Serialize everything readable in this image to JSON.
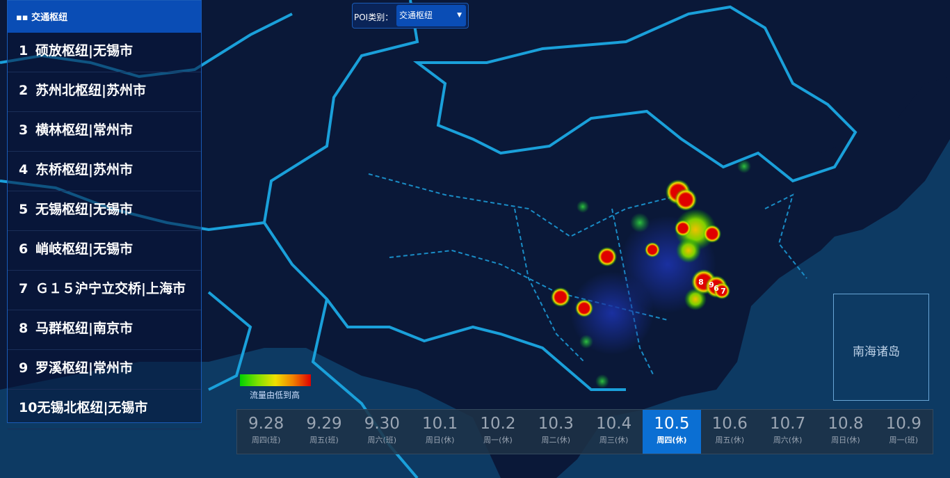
{
  "panel": {
    "title": "交通枢纽",
    "items": [
      {
        "rank": 1,
        "name": "硕放枢纽|无锡市"
      },
      {
        "rank": 2,
        "name": "苏州北枢纽|苏州市"
      },
      {
        "rank": 3,
        "name": "横林枢纽|常州市"
      },
      {
        "rank": 4,
        "name": "东桥枢纽|苏州市"
      },
      {
        "rank": 5,
        "name": "无锡枢纽|无锡市"
      },
      {
        "rank": 6,
        "name": "峭岐枢纽|无锡市"
      },
      {
        "rank": 7,
        "name": "Ｇ１５沪宁立交桥|上海市"
      },
      {
        "rank": 8,
        "name": "马群枢纽|南京市"
      },
      {
        "rank": 9,
        "name": "罗溪枢纽|常州市"
      },
      {
        "rank": 10,
        "name": "无锡北枢纽|无锡市"
      }
    ]
  },
  "filter": {
    "label": "POI类别：",
    "value": "交通枢纽"
  },
  "legend": {
    "label": "流量由低到高"
  },
  "inset": {
    "label": "南海诸岛"
  },
  "markers": [
    "8",
    "9",
    "6",
    "7"
  ],
  "timeline": {
    "selected": "10.5",
    "days": [
      {
        "date": "9.28",
        "weekday": "周四(班)"
      },
      {
        "date": "9.29",
        "weekday": "周五(班)"
      },
      {
        "date": "9.30",
        "weekday": "周六(班)"
      },
      {
        "date": "10.1",
        "weekday": "周日(休)"
      },
      {
        "date": "10.2",
        "weekday": "周一(休)"
      },
      {
        "date": "10.3",
        "weekday": "周二(休)"
      },
      {
        "date": "10.4",
        "weekday": "周三(休)"
      },
      {
        "date": "10.5",
        "weekday": "周四(休)"
      },
      {
        "date": "10.6",
        "weekday": "周五(休)"
      },
      {
        "date": "10.7",
        "weekday": "周六(休)"
      },
      {
        "date": "10.8",
        "weekday": "周日(休)"
      },
      {
        "date": "10.9",
        "weekday": "周一(班)"
      }
    ]
  }
}
